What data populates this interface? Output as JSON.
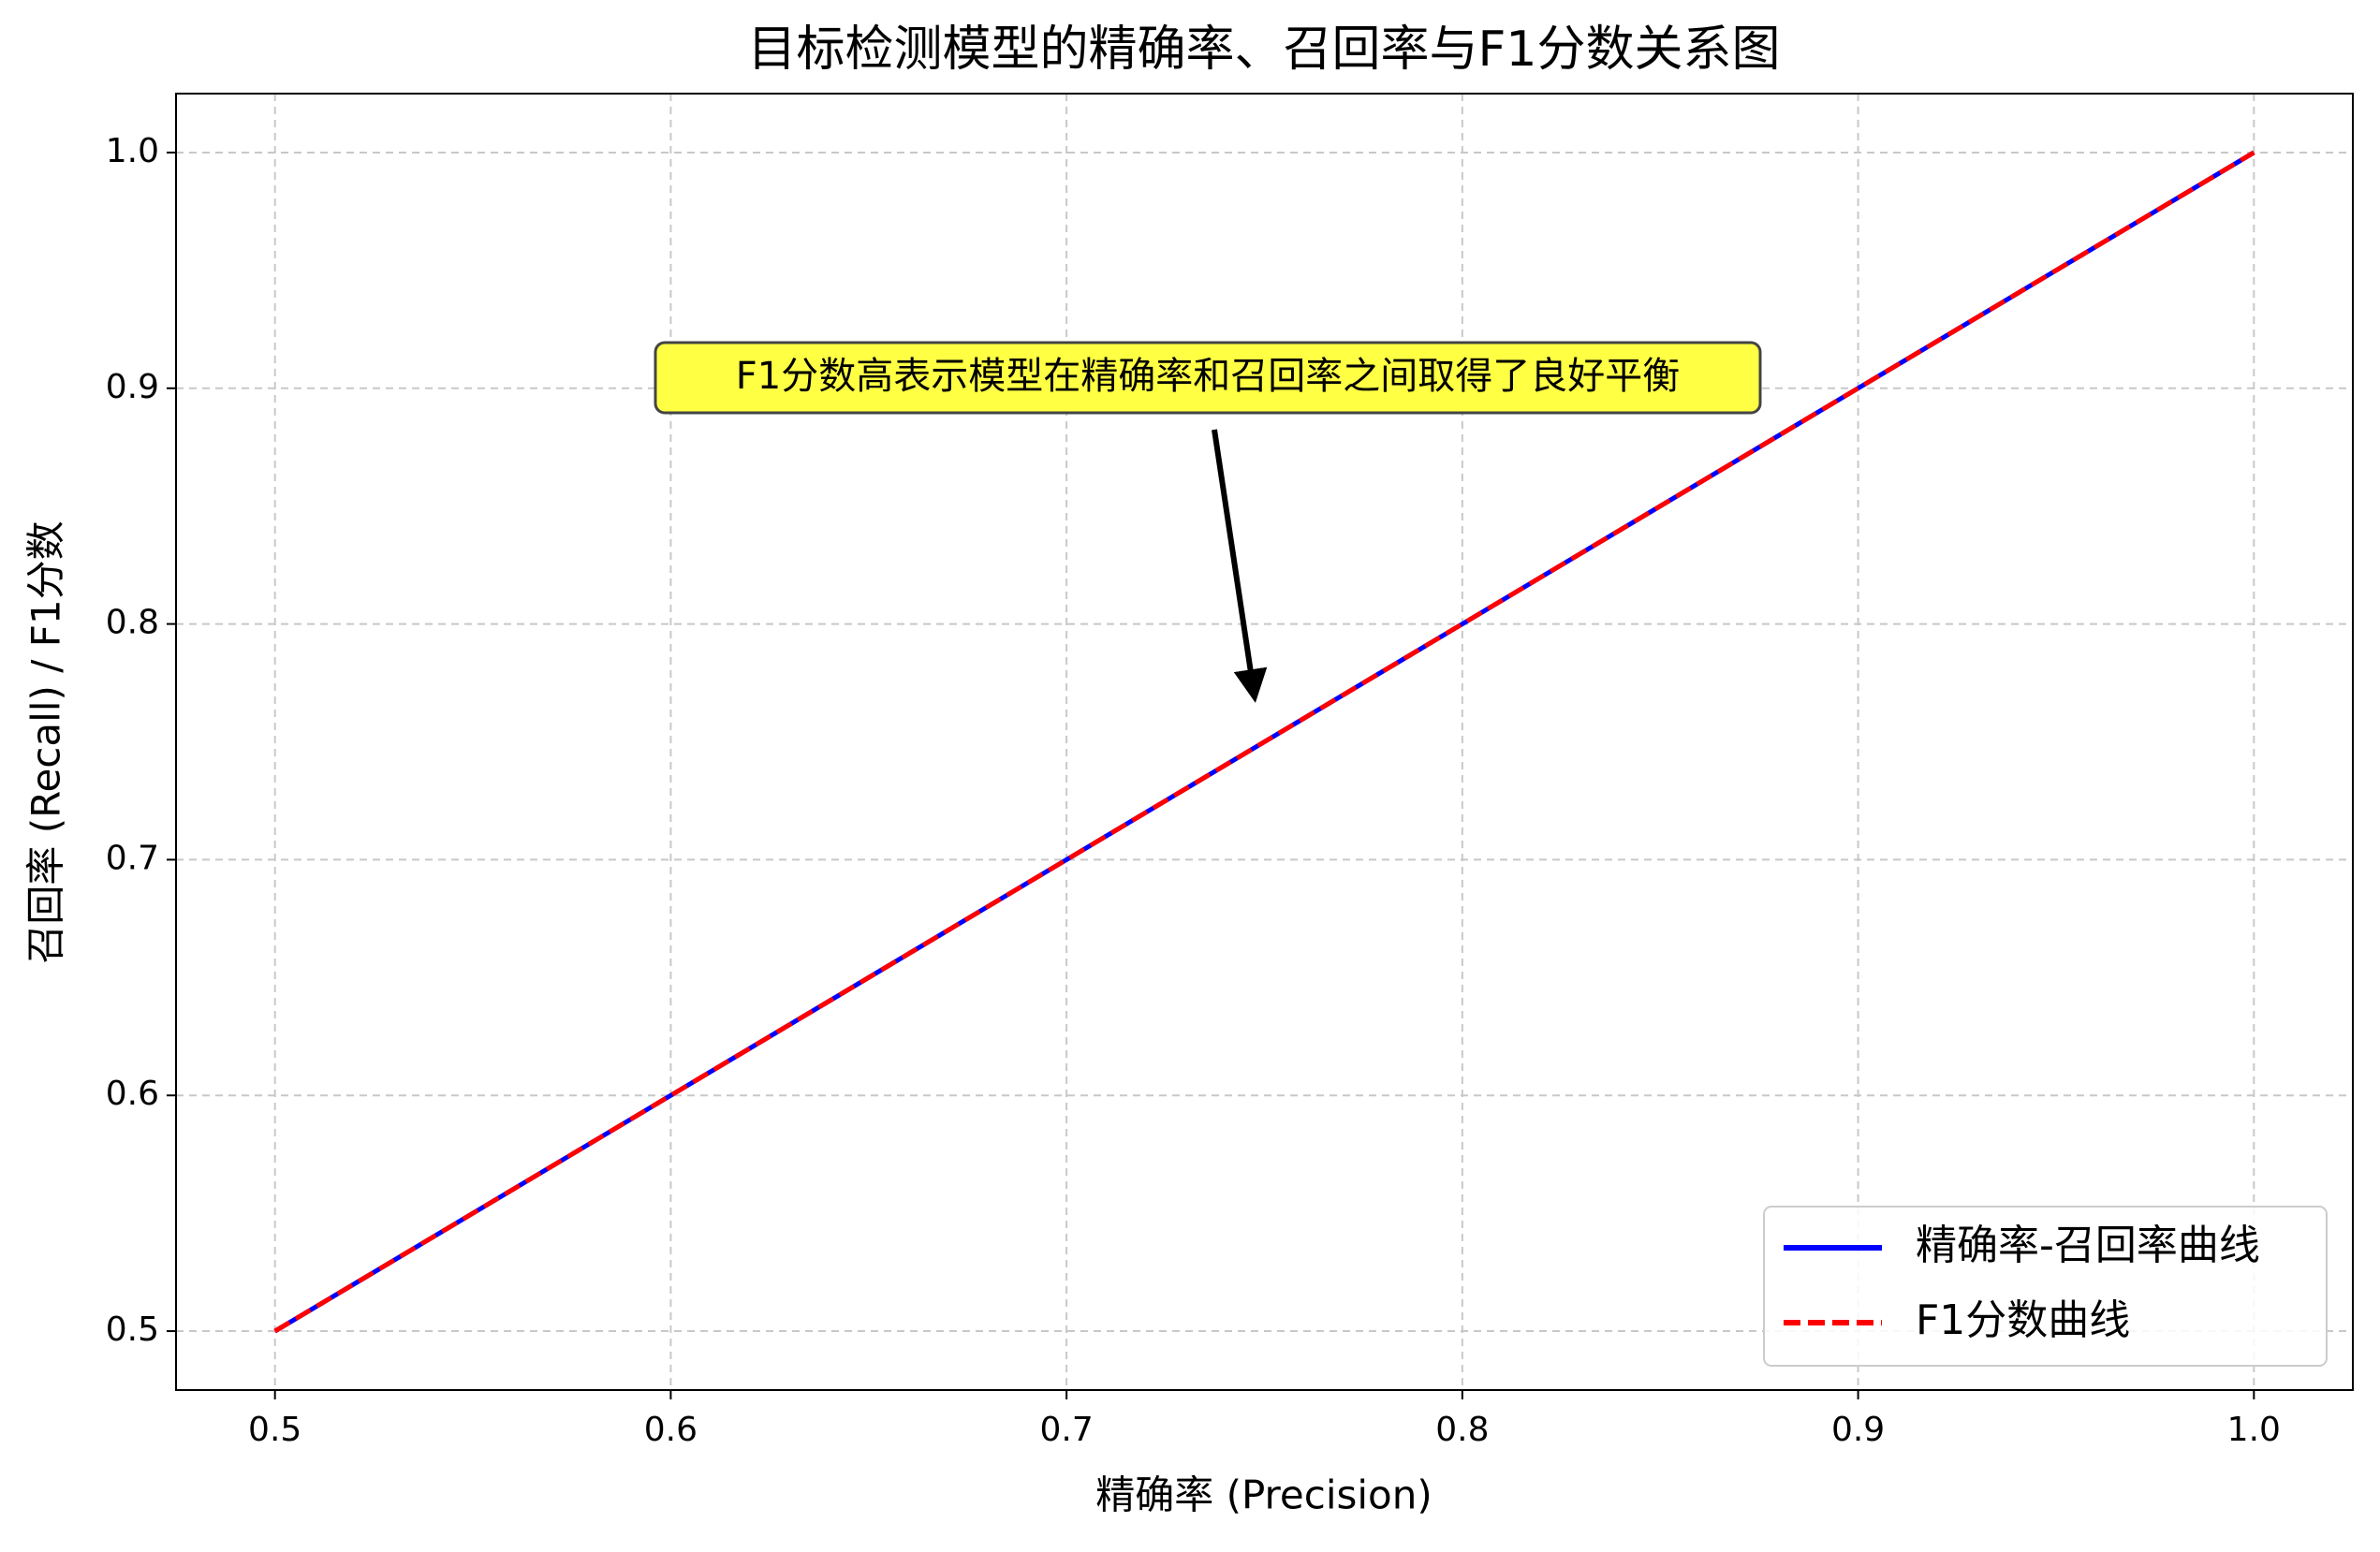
{
  "chart_data": {
    "type": "line",
    "title": "目标检测模型的精确率、召回率与F1分数关系图",
    "xlabel": "精确率 (Precision)",
    "ylabel": "召回率 (Recall) / F1分数",
    "x": [
      0.5,
      0.55,
      0.6,
      0.65,
      0.7,
      0.75,
      0.8,
      0.85,
      0.9,
      0.95,
      1.0
    ],
    "series": [
      {
        "name": "精确率-召回率曲线",
        "color": "#0000ff",
        "style": "solid",
        "values": [
          0.5,
          0.55,
          0.6,
          0.65,
          0.7,
          0.75,
          0.8,
          0.85,
          0.9,
          0.95,
          1.0
        ]
      },
      {
        "name": "F1分数曲线",
        "color": "#ff0000",
        "style": "dashed",
        "values": [
          0.5,
          0.55,
          0.6,
          0.65,
          0.7,
          0.75,
          0.8,
          0.85,
          0.9,
          0.95,
          1.0
        ]
      }
    ],
    "xlim": [
      0.475,
      1.025
    ],
    "ylim": [
      0.475,
      1.025
    ],
    "xticks": [
      0.5,
      0.6,
      0.7,
      0.8,
      0.9,
      {
        "value": 1,
        "label": "1.0"
      }
    ],
    "yticks": [
      0.5,
      0.6,
      0.7,
      0.8,
      0.9,
      {
        "value": 1,
        "label": "1.0"
      }
    ],
    "grid": true,
    "legend": "lower right",
    "annotations": [
      {
        "text": "F1分数高表示模型在精确率和召回率之间取得了良好平衡"
      }
    ]
  }
}
